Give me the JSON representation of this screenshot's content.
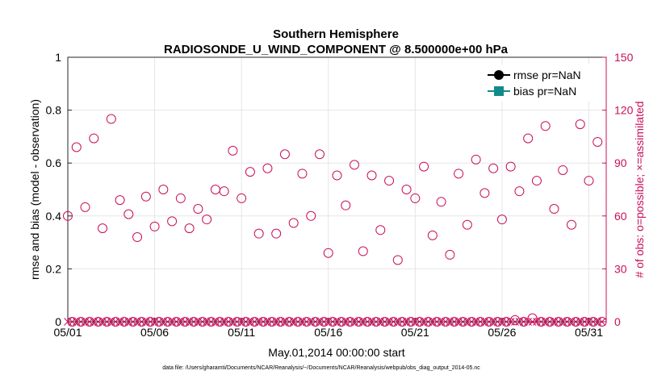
{
  "chart_data": {
    "type": "scatter",
    "title": "Southern Hemisphere",
    "subtitle": "RADIOSONDE_U_WIND_COMPONENT @ 8.500000e+00 hPa",
    "xlabel": "May.01,2014 00:00:00 start",
    "ylabel_left": "rmse and bias (model - observation)",
    "ylabel_right": "# of obs: o=possible; ×=assimilated",
    "ylim_left": [
      0,
      1
    ],
    "ylim_right": [
      0,
      150
    ],
    "yticks_left": [
      "0",
      "0.2",
      "0.4",
      "0.6",
      "0.8",
      "1"
    ],
    "yticks_right": [
      "0",
      "30",
      "60",
      "90",
      "120",
      "150"
    ],
    "xlim_days": [
      1,
      32
    ],
    "xticks": [
      {
        "day": 1,
        "label": "05/01"
      },
      {
        "day": 6,
        "label": "05/06"
      },
      {
        "day": 11,
        "label": "05/11"
      },
      {
        "day": 16,
        "label": "05/16"
      },
      {
        "day": 21,
        "label": "05/21"
      },
      {
        "day": 26,
        "label": "05/26"
      },
      {
        "day": 31,
        "label": "05/31"
      }
    ],
    "grid": true,
    "legend": [
      "rmse pr=NaN",
      "bias pr=NaN"
    ],
    "legend_position": "top-right",
    "series": [
      {
        "name": "possible",
        "marker": "circle",
        "axis": "right",
        "x": [
          1,
          1.5,
          2,
          2.5,
          3,
          3.5,
          4,
          4.5,
          5,
          5.5,
          6,
          6.5,
          7,
          7.5,
          8,
          8.5,
          9,
          9.5,
          10,
          10.5,
          11,
          11.5,
          12,
          12.5,
          13,
          13.5,
          14,
          14.5,
          15,
          15.5,
          16,
          16.5,
          17,
          17.5,
          18,
          18.5,
          19,
          19.5,
          20,
          20.5,
          21,
          21.5,
          22,
          22.5,
          23,
          23.5,
          24,
          24.5,
          25,
          25.5,
          26,
          26.5,
          27,
          27.5,
          28,
          28.5,
          29,
          29.5,
          30,
          30.5,
          31,
          31.5
        ],
        "y": [
          60,
          99,
          65,
          104,
          53,
          115,
          69,
          61,
          48,
          71,
          54,
          75,
          57,
          70,
          53,
          64,
          58,
          75,
          74,
          97,
          70,
          85,
          50,
          87,
          50,
          95,
          56,
          84,
          60,
          95,
          39,
          83,
          66,
          89,
          40,
          83,
          52,
          80,
          35,
          75,
          70,
          88,
          49,
          68,
          38,
          84,
          55,
          92,
          73,
          87,
          58,
          88,
          74,
          104,
          80,
          111,
          64,
          86,
          55,
          112,
          80,
          102
        ]
      },
      {
        "name": "assimilated",
        "marker": "x",
        "axis": "right",
        "x": [
          1,
          1.25,
          1.5,
          1.75,
          2,
          2.25,
          2.5,
          2.75,
          3,
          3.25,
          3.5,
          3.75,
          4,
          4.25,
          4.5,
          4.75,
          5,
          5.25,
          5.5,
          5.75,
          6,
          6.25,
          6.5,
          6.75,
          7,
          7.25,
          7.5,
          7.75,
          8,
          8.25,
          8.5,
          8.75,
          9,
          9.25,
          9.5,
          9.75,
          10,
          10.25,
          10.5,
          10.75,
          11,
          11.25,
          11.5,
          11.75,
          12,
          12.25,
          12.5,
          12.75,
          13,
          13.25,
          13.5,
          13.75,
          14,
          14.25,
          14.5,
          14.75,
          15,
          15.25,
          15.5,
          15.75,
          16,
          16.25,
          16.5,
          16.75,
          17,
          17.25,
          17.5,
          17.75,
          18,
          18.25,
          18.5,
          18.75,
          19,
          19.25,
          19.5,
          19.75,
          20,
          20.25,
          20.5,
          20.75,
          21,
          21.25,
          21.5,
          21.75,
          22,
          22.25,
          22.5,
          22.75,
          23,
          23.25,
          23.5,
          23.75,
          24,
          24.25,
          24.5,
          24.75,
          25,
          25.25,
          25.5,
          25.75,
          26,
          26.25,
          26.5,
          26.75,
          27,
          27.25,
          27.5,
          27.75,
          28,
          28.25,
          28.5,
          28.75,
          29,
          29.25,
          29.5,
          29.75,
          30,
          30.25,
          30.5,
          30.75,
          31,
          31.25,
          31.5,
          31.75
        ],
        "y": [
          0,
          0,
          0,
          0,
          0,
          0,
          0,
          0,
          0,
          0,
          0,
          0,
          0,
          0,
          0,
          0,
          0,
          0,
          0,
          0,
          0,
          0,
          0,
          0,
          0,
          0,
          0,
          0,
          0,
          0,
          0,
          0,
          0,
          0,
          0,
          0,
          0,
          0,
          0,
          0,
          0,
          0,
          0,
          0,
          0,
          0,
          0,
          0,
          0,
          0,
          0,
          0,
          0,
          0,
          0,
          0,
          0,
          0,
          0,
          0,
          0,
          0,
          0,
          0,
          0,
          0,
          0,
          0,
          0,
          0,
          0,
          0,
          0,
          0,
          0,
          0,
          0,
          0,
          0,
          0,
          0,
          0,
          0,
          0,
          0,
          0,
          0,
          0,
          0,
          0,
          0,
          0,
          0,
          0,
          0,
          0,
          0,
          0,
          0,
          0,
          0,
          0,
          0,
          0,
          0,
          0,
          0,
          0,
          0,
          0,
          0,
          0,
          0,
          0,
          0,
          0,
          0,
          0,
          0,
          0,
          0,
          0,
          0,
          0
        ]
      },
      {
        "name": "possible_zero",
        "marker": "circle",
        "axis": "right",
        "x": [
          1.25,
          1.75,
          2.25,
          2.75,
          3.25,
          3.75,
          4.25,
          4.75,
          5.25,
          5.75,
          6.25,
          6.75,
          7.25,
          7.75,
          8.25,
          8.75,
          9.25,
          9.75,
          10.25,
          10.75,
          11.25,
          11.75,
          12.25,
          12.75,
          13.25,
          13.75,
          14.25,
          14.75,
          15.25,
          15.75,
          16.25,
          16.75,
          17.25,
          17.75,
          18.25,
          18.75,
          19.25,
          19.75,
          20.25,
          20.75,
          21.25,
          21.75,
          22.25,
          22.75,
          23.25,
          23.75,
          24.25,
          24.75,
          25.25,
          25.75,
          26.25,
          26.75,
          27.25,
          27.75,
          28.25,
          28.75,
          29.25,
          29.75,
          30.25,
          30.75,
          31.25,
          31.75
        ],
        "y": [
          0,
          0,
          0,
          0,
          0,
          0,
          0,
          0,
          0,
          0,
          0,
          0,
          0,
          0,
          0,
          0,
          0,
          0,
          0,
          0,
          0,
          0,
          0,
          0,
          0,
          0,
          0,
          0,
          0,
          0,
          0,
          0,
          0,
          0,
          0,
          0,
          0,
          0,
          0,
          0,
          0,
          0,
          0,
          0,
          0,
          0,
          0,
          0,
          0,
          0,
          0,
          1,
          0,
          2,
          0,
          0,
          0,
          0,
          0,
          0,
          0,
          0
        ]
      }
    ],
    "footnote": "data file: /Users/gharamti/Documents/NCAR/Reanalysis/~/Documents/NCAR/Reanalysis/webpub/obs_diag_output_2014-05.nc"
  },
  "colors": {
    "obs": "#c8105a",
    "rmse": "#000000",
    "bias": "#138a8a",
    "grid": "#e6e6e6"
  }
}
